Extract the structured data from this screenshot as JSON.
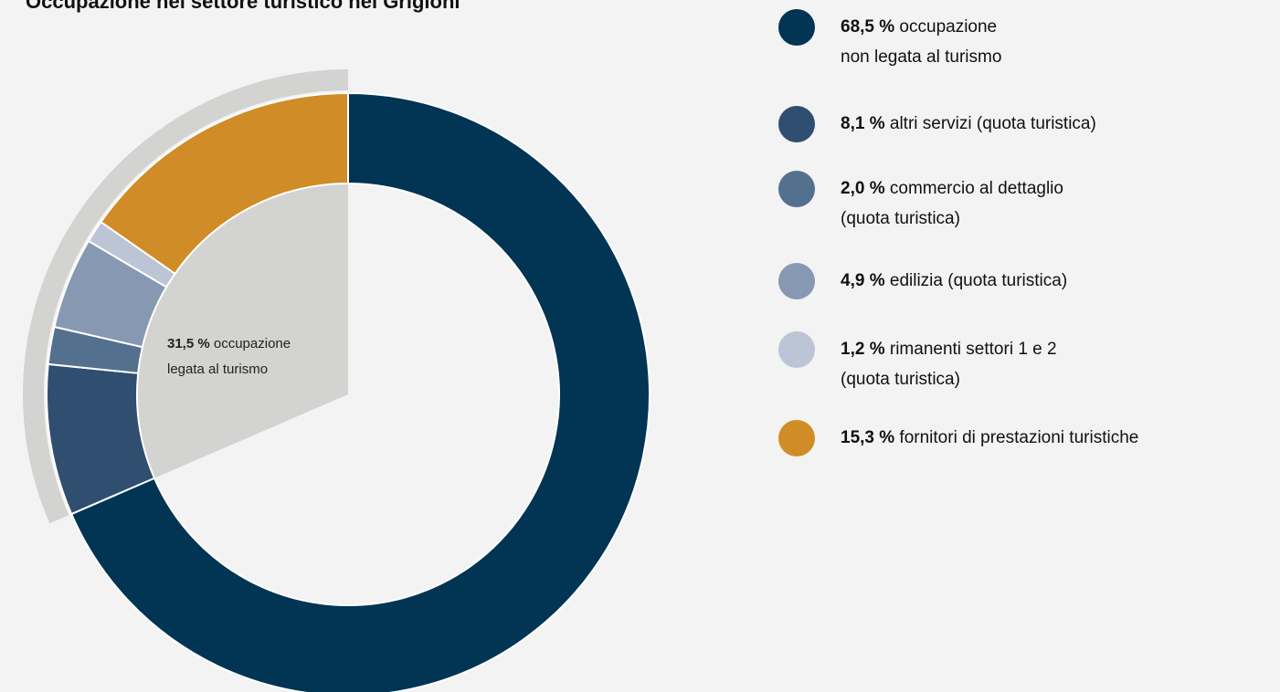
{
  "chart_data": {
    "type": "pie",
    "title": "Occupazione nel settore turistico nei Grigioni",
    "group_label": {
      "value": "31,5 %",
      "text": "occupazione legata al turismo",
      "line1_text": "occupazione",
      "line2": "legata al turismo",
      "slices": [
        1,
        2,
        3,
        4,
        5
      ],
      "color": "#d3d3d1"
    },
    "slices": [
      {
        "value": 68.5,
        "pct": "68,5 %",
        "label": "occupazione non legata al turismo",
        "line1": "occupazione",
        "line2": "non legata al turismo",
        "color": "#023453"
      },
      {
        "value": 8.1,
        "pct": "8,1 %",
        "label": "altri servizi (quota turistica)",
        "line1": "altri servizi (quota turistica)",
        "line2": "",
        "color": "#2f4e70"
      },
      {
        "value": 2.0,
        "pct": "2,0 %",
        "label": "commercio al dettaglio (quota turistica)",
        "line1": "commercio al dettaglio",
        "line2": "(quota turistica)",
        "color": "#54708f"
      },
      {
        "value": 4.9,
        "pct": "4,9 %",
        "label": "edilizia (quota turistica)",
        "line1": "edilizia (quota turistica)",
        "line2": "",
        "color": "#8798b3"
      },
      {
        "value": 1.2,
        "pct": "1,2 %",
        "label": "rimanenti settori 1 e 2 (quota turistica)",
        "line1": "rimanenti settori 1 e 2",
        "line2": "(quota turistica)",
        "color": "#bcc5d5"
      },
      {
        "value": 15.3,
        "pct": "15,3 %",
        "label": "fornitori di prestazioni turistiche",
        "line1": "fornitori di prestazioni turistiche",
        "line2": "",
        "color": "#d08c26"
      }
    ],
    "legend_position": "right"
  }
}
